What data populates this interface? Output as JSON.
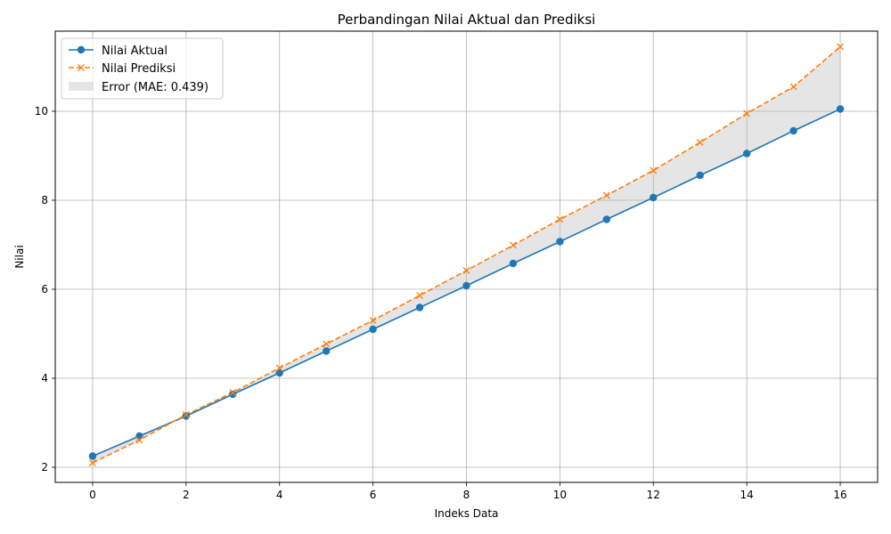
{
  "chart_data": {
    "type": "line",
    "title": "Perbandingan Nilai Aktual dan Prediksi",
    "xlabel": "Indeks Data",
    "ylabel": "Nilai",
    "xlim": [
      -0.8,
      16.8
    ],
    "ylim": [
      1.66,
      11.8
    ],
    "xticks": [
      0,
      2,
      4,
      6,
      8,
      10,
      12,
      14,
      16
    ],
    "yticks": [
      2,
      4,
      6,
      8,
      10
    ],
    "grid": true,
    "legend_position": "upper-left",
    "x": [
      0,
      1,
      2,
      3,
      4,
      5,
      6,
      7,
      8,
      9,
      10,
      11,
      12,
      13,
      14,
      15,
      16
    ],
    "series": [
      {
        "name": "Nilai Aktual",
        "color": "#1f77b4",
        "line_style": "solid",
        "marker": "circle",
        "values": [
          2.25,
          2.7,
          3.15,
          3.64,
          4.12,
          4.61,
          5.1,
          5.59,
          6.08,
          6.58,
          7.07,
          7.57,
          8.06,
          8.56,
          9.05,
          9.56,
          10.05
        ]
      },
      {
        "name": "Nilai Prediksi",
        "color": "#ff7f0e",
        "line_style": "dashed",
        "marker": "x",
        "values": [
          2.1,
          2.61,
          3.18,
          3.68,
          4.23,
          4.77,
          5.3,
          5.86,
          6.42,
          6.99,
          7.57,
          8.11,
          8.67,
          9.3,
          9.95,
          10.55,
          11.45
        ]
      }
    ],
    "fill_between": {
      "name": "Error (MAE: 0.439)",
      "color": "#bfbfbf"
    }
  }
}
